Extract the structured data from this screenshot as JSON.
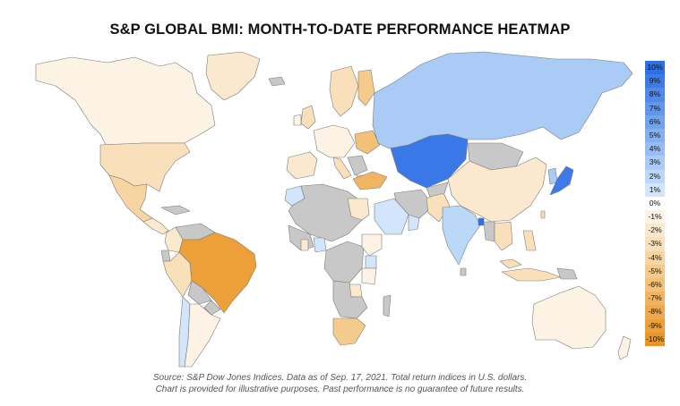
{
  "title": "S&P GLOBAL BMI: MONTH-TO-DATE PERFORMANCE HEATMAP",
  "source_line1": "Source: S&P Dow Jones Indices. Data as of Sep. 17, 2021. Total return indices in U.S. dollars.",
  "source_line2": "Chart is provided for illustrative purposes. Past performance is no guarantee of future results.",
  "legend": [
    {
      "label": "10%",
      "color": "#2f6fe6"
    },
    {
      "label": "9%",
      "color": "#3f7be8"
    },
    {
      "label": "8%",
      "color": "#5089ea"
    },
    {
      "label": "7%",
      "color": "#6196ec"
    },
    {
      "label": "6%",
      "color": "#72a3ef"
    },
    {
      "label": "5%",
      "color": "#84b0f1"
    },
    {
      "label": "4%",
      "color": "#96bdf3"
    },
    {
      "label": "3%",
      "color": "#a9cbf6"
    },
    {
      "label": "2%",
      "color": "#bcd8f8"
    },
    {
      "label": "1%",
      "color": "#d3e5fb"
    },
    {
      "label": "0%",
      "color": "#ffffff"
    },
    {
      "label": "-1%",
      "color": "#fdf3e4"
    },
    {
      "label": "-2%",
      "color": "#fbe9cf"
    },
    {
      "label": "-3%",
      "color": "#f9e0ba"
    },
    {
      "label": "-4%",
      "color": "#f7d5a3"
    },
    {
      "label": "-5%",
      "color": "#f5cb8d"
    },
    {
      "label": "-6%",
      "color": "#f3c077"
    },
    {
      "label": "-7%",
      "color": "#f1b562"
    },
    {
      "label": "-8%",
      "color": "#efaa4d"
    },
    {
      "label": "-9%",
      "color": "#eda038"
    },
    {
      "label": "-10%",
      "color": "#eb9524"
    }
  ],
  "colors": {
    "no_data": "#c8c8c8",
    "border": "#7a7a7a",
    "greenland": "#fbe9cf",
    "canada": "#fdf3e4",
    "usa": "#f9e0ba",
    "mexico": "#f7d5a3",
    "central_america": "#fbe9cf",
    "colombia": "#fbe9cf",
    "peru": "#f9e0ba",
    "brazil": "#eda038",
    "chile": "#d3e5fb",
    "argentina": "#fdf3e4",
    "uk": "#f9e0ba",
    "iberia": "#fbe9cf",
    "europe_west": "#fdf3e4",
    "scandinavia": "#f9e0ba",
    "finland": "#f5cb8d",
    "eastern_europe": "#f3c077",
    "russia": "#a9cbf6",
    "kazakhstan": "#3b78e7",
    "turkey": "#f1b562",
    "morocco": "#d3e5fb",
    "egypt": "#fbe9cf",
    "saudi": "#d3e5fb",
    "gulf": "#d3e5fb",
    "pakistan": "#f9e0ba",
    "india": "#bcd8f8",
    "bangladesh": "#2f6fe6",
    "china": "#fbe9cf",
    "korea": "#a9cbf6",
    "japan": "#3f7be8",
    "se_asia": "#f9e0ba",
    "indonesia": "#f9e0ba",
    "philippines": "#f9e0ba",
    "australia": "#fdf3e4",
    "nz": "#fdf3e4",
    "south_africa": "#f5cb8d",
    "kenya": "#d3e5fb",
    "nigeria": "#d3e5fb",
    "ghana": "#fbe9cf",
    "east_africa": "#fdf3e4",
    "zambia": "#fbe9cf"
  }
}
